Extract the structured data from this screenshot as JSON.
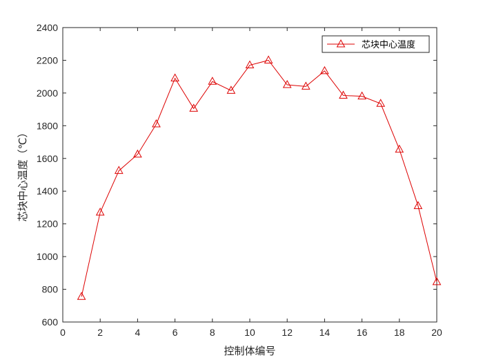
{
  "chart_data": {
    "type": "line",
    "title": "",
    "xlabel": "控制体编号",
    "ylabel": "芯块中心温度（℃）",
    "xlim": [
      0,
      20
    ],
    "ylim": [
      600,
      2400
    ],
    "xticks": [
      0,
      2,
      4,
      6,
      8,
      10,
      12,
      14,
      16,
      18,
      20
    ],
    "yticks": [
      600,
      800,
      1000,
      1200,
      1400,
      1600,
      1800,
      2000,
      2200,
      2400
    ],
    "grid": false,
    "legend_position": "top-right",
    "x": [
      1,
      2,
      3,
      4,
      5,
      6,
      7,
      8,
      9,
      10,
      11,
      12,
      13,
      14,
      15,
      16,
      17,
      18,
      19,
      20
    ],
    "series": [
      {
        "name": "芯块中心温度",
        "color": "#dd0000",
        "marker": "triangle",
        "values": [
          755,
          1270,
          1525,
          1625,
          1810,
          2090,
          1905,
          2070,
          2015,
          2170,
          2200,
          2050,
          2040,
          2135,
          1985,
          1980,
          1935,
          1655,
          1310,
          845
        ]
      }
    ]
  }
}
